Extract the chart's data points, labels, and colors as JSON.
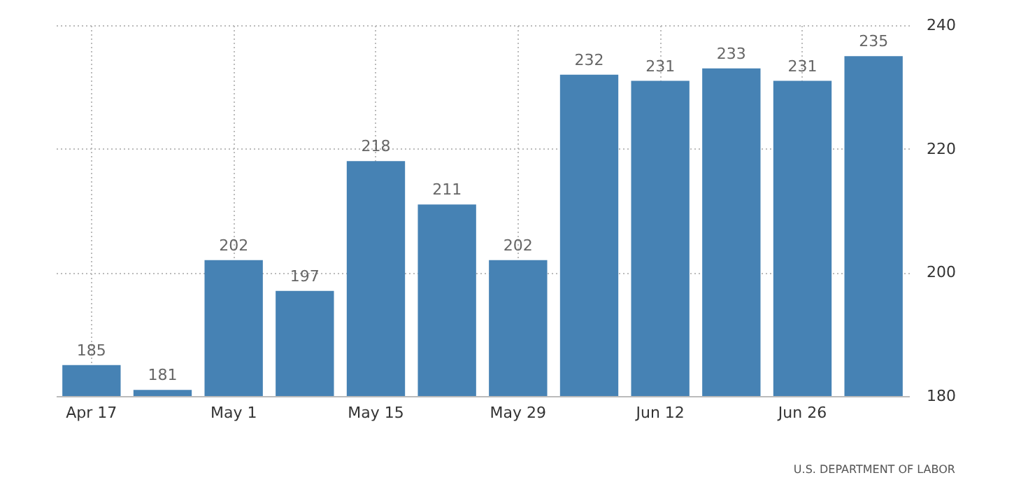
{
  "chart_data": {
    "type": "bar",
    "categories": [
      "Apr 17",
      null,
      "May 1",
      null,
      "May 15",
      null,
      "May 29",
      null,
      "Jun 12",
      null,
      "Jun 26",
      null
    ],
    "values": [
      185,
      181,
      202,
      197,
      218,
      211,
      202,
      232,
      231,
      233,
      231,
      235
    ],
    "color": "#4682b4",
    "ylim": [
      180,
      240
    ],
    "yticks": [
      180,
      200,
      220,
      240
    ],
    "grid": true,
    "data_labels": true,
    "annotations": [
      "U.S. DEPARTMENT OF LABOR"
    ]
  }
}
